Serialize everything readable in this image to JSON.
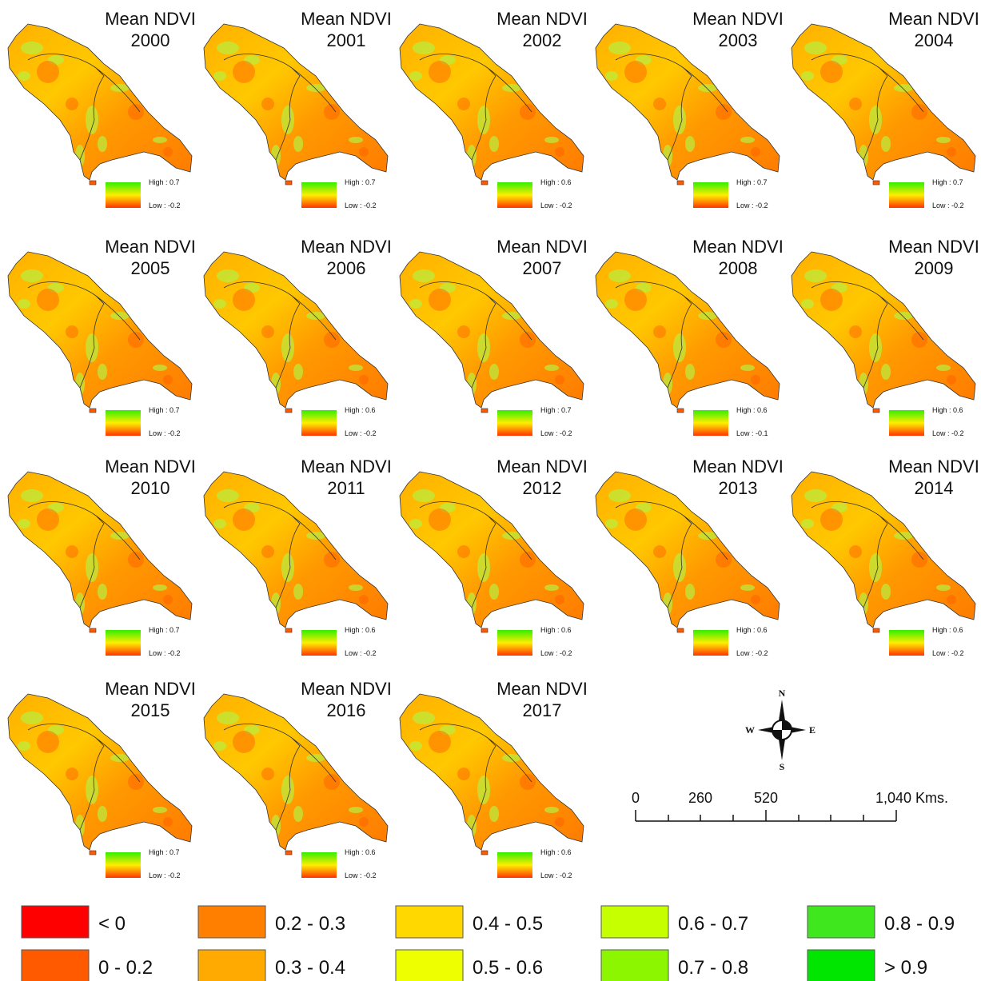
{
  "panels": [
    {
      "title": "Mean NDVI",
      "year": "2000",
      "high": "High : 0.7",
      "low": "Low : -0.2"
    },
    {
      "title": "Mean NDVI",
      "year": "2001",
      "high": "High : 0.7",
      "low": "Low : -0.2"
    },
    {
      "title": "Mean NDVI",
      "year": "2002",
      "high": "High : 0.6",
      "low": "Low : -0.2"
    },
    {
      "title": "Mean NDVI",
      "year": "2003",
      "high": "High : 0.7",
      "low": "Low : -0.2"
    },
    {
      "title": "Mean NDVI",
      "year": "2004",
      "high": "High : 0.7",
      "low": "Low : -0.2"
    },
    {
      "title": "Mean NDVI",
      "year": "2005",
      "high": "High : 0.7",
      "low": "Low : -0.2"
    },
    {
      "title": "Mean NDVI",
      "year": "2006",
      "high": "High : 0.6",
      "low": "Low : -0.2"
    },
    {
      "title": "Mean NDVI",
      "year": "2007",
      "high": "High : 0.7",
      "low": "Low : -0.2"
    },
    {
      "title": "Mean NDVI",
      "year": "2008",
      "high": "High : 0.6",
      "low": "Low : -0.1"
    },
    {
      "title": "Mean NDVI",
      "year": "2009",
      "high": "High : 0.6",
      "low": "Low : -0.2"
    },
    {
      "title": "Mean NDVI",
      "year": "2010",
      "high": "High : 0.7",
      "low": "Low : -0.2"
    },
    {
      "title": "Mean NDVI",
      "year": "2011",
      "high": "High : 0.6",
      "low": "Low : -0.2"
    },
    {
      "title": "Mean NDVI",
      "year": "2012",
      "high": "High : 0.6",
      "low": "Low : -0.2"
    },
    {
      "title": "Mean NDVI",
      "year": "2013",
      "high": "High : 0.6",
      "low": "Low : -0.2"
    },
    {
      "title": "Mean NDVI",
      "year": "2014",
      "high": "High : 0.6",
      "low": "Low : -0.2"
    },
    {
      "title": "Mean NDVI",
      "year": "2015",
      "high": "High : 0.7",
      "low": "Low : -0.2"
    },
    {
      "title": "Mean NDVI",
      "year": "2016",
      "high": "High : 0.6",
      "low": "Low : -0.2"
    },
    {
      "title": "Mean NDVI",
      "year": "2017",
      "high": "High : 0.6",
      "low": "Low : -0.2"
    }
  ],
  "compass": {
    "n": "N",
    "s": "S",
    "e": "E",
    "w": "W"
  },
  "scale_bar": {
    "labels": [
      "0",
      "260",
      "520",
      "1,040 Kms."
    ]
  },
  "legend": [
    {
      "label": "< 0",
      "color": "#ff0000"
    },
    {
      "label": "0 - 0.2",
      "color": "#ff5a00"
    },
    {
      "label": "0.2 - 0.3",
      "color": "#ff8000"
    },
    {
      "label": "0.3 - 0.4",
      "color": "#ffaa00"
    },
    {
      "label": "0.4 - 0.5",
      "color": "#ffd800"
    },
    {
      "label": "0.5 - 0.6",
      "color": "#eeff00"
    },
    {
      "label": "0.6 - 0.7",
      "color": "#c6ff00"
    },
    {
      "label": "0.7 - 0.8",
      "color": "#8cf500"
    },
    {
      "label": "0.8 - 0.9",
      "color": "#3fe81e"
    },
    {
      "label": "> 0.9",
      "color": "#00e600"
    }
  ]
}
